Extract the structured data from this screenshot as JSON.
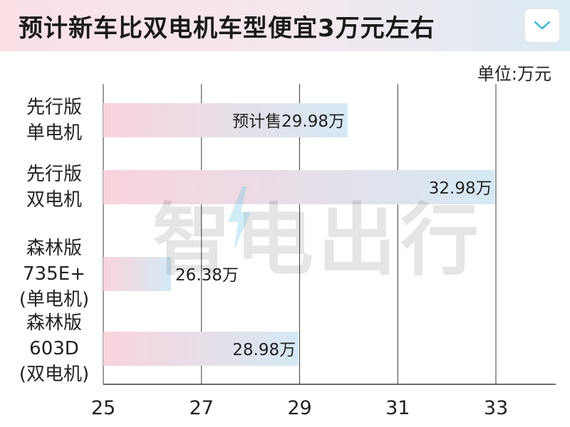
{
  "header": {
    "title": "预计新车比双电机车型便宜3万元左右",
    "dropdown_icon": "chevron-down-icon"
  },
  "unit_label": "单位:万元",
  "watermark": "智电出行",
  "colors": {
    "bar_start": "#f9d3dc",
    "bar_end": "#d5e9f4",
    "grid": "#333333",
    "chevron": "#3fb6d6"
  },
  "chart_data": {
    "type": "bar",
    "orientation": "horizontal",
    "categories": [
      [
        "先行版",
        "单电机"
      ],
      [
        "先行版",
        "双电机"
      ],
      [
        "森林版",
        "735E+",
        "(单电机)"
      ],
      [
        "森林版",
        "603D",
        "(双电机)"
      ]
    ],
    "values": [
      29.98,
      32.98,
      26.38,
      28.98
    ],
    "data_labels": [
      "预计售29.98万",
      "32.98万",
      "26.38万",
      "28.98万"
    ],
    "xlim": [
      25,
      33
    ],
    "xticks": [
      "25",
      "27",
      "29",
      "31",
      "33"
    ],
    "grid": true,
    "unit": "单位:万元"
  }
}
